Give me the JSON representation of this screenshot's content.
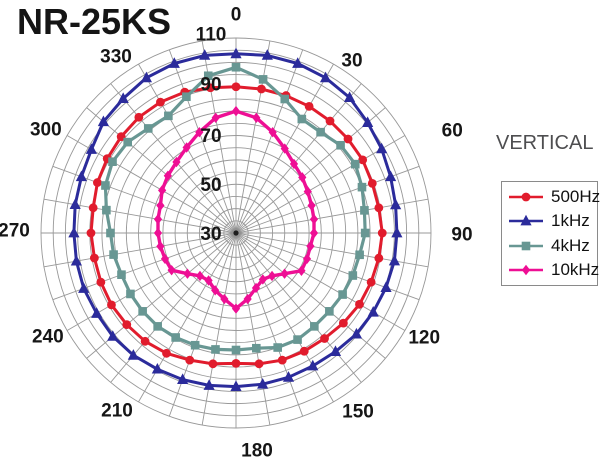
{
  "title": "NR-25KS",
  "orientation_label": "VERTICAL",
  "legend": {
    "items": [
      {
        "label": "500Hz"
      },
      {
        "label": "1kHz"
      },
      {
        "label": "4kHz"
      },
      {
        "label": "10kHz"
      }
    ]
  },
  "chart_data": {
    "type": "line",
    "subtype": "polar-directivity",
    "title": "NR-25KS",
    "plane": "VERTICAL",
    "angle_unit": "degrees",
    "angle_ticks_deg": [
      0,
      30,
      60,
      90,
      120,
      150,
      180,
      210,
      240,
      270,
      300,
      330
    ],
    "angle_tick_labels": [
      "0",
      "30",
      "60",
      "90",
      "120",
      "150",
      "180",
      "210",
      "240",
      "270",
      "300",
      "330"
    ],
    "radial_axis": {
      "min": 30,
      "max": 110,
      "ring_step": 5,
      "tick_values": [
        110,
        90,
        70,
        50,
        30
      ],
      "tick_labels": [
        "110",
        "90",
        "70",
        "50",
        "30"
      ]
    },
    "grid": {
      "on": true,
      "color": "#989898",
      "spoke_step_deg": 10
    },
    "legend_position": "right",
    "angles_deg": [
      0,
      10,
      20,
      30,
      40,
      50,
      60,
      70,
      80,
      90,
      100,
      110,
      120,
      130,
      140,
      150,
      160,
      170,
      180,
      190,
      200,
      210,
      220,
      230,
      240,
      250,
      260,
      270,
      280,
      290,
      300,
      310,
      320,
      330,
      340,
      350
    ],
    "series": [
      {
        "name": "500Hz",
        "color": "#e11c2d",
        "marker": "circle",
        "values": [
          90,
          90,
          90,
          90,
          90,
          90,
          90,
          89.5,
          89.5,
          90,
          89.5,
          89,
          88.5,
          87.5,
          86.5,
          86,
          85.5,
          84.5,
          83.5,
          84.5,
          85.5,
          87,
          88,
          88.5,
          89,
          89,
          89,
          89.5,
          89.5,
          90.5,
          91,
          91.5,
          92,
          92,
          91.5,
          90.5
        ]
      },
      {
        "name": "1kHz",
        "color": "#2b2b9b",
        "marker": "triangle",
        "values": [
          103.5,
          104,
          104,
          103.5,
          102.5,
          100.5,
          99,
          97.5,
          96.5,
          96,
          96,
          95.5,
          95,
          94.5,
          93.5,
          93,
          93,
          93,
          93,
          93.5,
          94,
          94.5,
          95.5,
          96,
          96,
          96.5,
          96.5,
          96.5,
          97,
          97.5,
          98.5,
          101,
          102,
          103.5,
          104,
          104
        ]
      },
      {
        "name": "4kHz",
        "color": "#689793",
        "marker": "square",
        "values": [
          98,
          94,
          88.5,
          84,
          84,
          86,
          86.5,
          85,
          83.5,
          83,
          81.5,
          81,
          80.5,
          80,
          80,
          80.5,
          80,
          78,
          78,
          78.5,
          79,
          79.5,
          80,
          80,
          80,
          80,
          81,
          81.5,
          84,
          87,
          88.5,
          88,
          86,
          85.5,
          89.5,
          95.5
        ]
      },
      {
        "name": "10kHz",
        "color": "#ee0f94",
        "marker": "diamond",
        "values": [
          80,
          78,
          74,
          70,
          67,
          65.5,
          64,
          63,
          62.5,
          62,
          61,
          61,
          61,
          56,
          53,
          52,
          54,
          57.5,
          61,
          57.5,
          55,
          52.5,
          53,
          56,
          60.5,
          61,
          61.5,
          62,
          62.5,
          63,
          65,
          66.5,
          68,
          70.5,
          74,
          78
        ]
      }
    ]
  }
}
